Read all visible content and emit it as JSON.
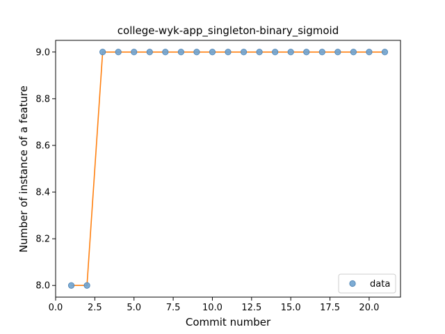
{
  "chart_data": {
    "type": "line",
    "title": "college-wyk-app_singleton-binary_sigmoid",
    "xlabel": "Commit number",
    "ylabel": "Number of instance of a feature",
    "xlim": [
      0.0,
      22.0
    ],
    "ylim": [
      7.95,
      9.05
    ],
    "xticks": [
      0.0,
      2.5,
      5.0,
      7.5,
      10.0,
      12.5,
      15.0,
      17.5,
      20.0
    ],
    "xtick_labels": [
      "0.0",
      "2.5",
      "5.0",
      "7.5",
      "10.0",
      "12.5",
      "15.0",
      "17.5",
      "20.0"
    ],
    "yticks": [
      8.0,
      8.2,
      8.4,
      8.6,
      8.8,
      9.0
    ],
    "ytick_labels": [
      "8.0",
      "8.2",
      "8.4",
      "8.6",
      "8.8",
      "9.0"
    ],
    "grid": false,
    "legend_position": "lower-right",
    "series": [
      {
        "name": "data",
        "style": "markers",
        "color": "#6fa3cf",
        "edge_color": "#4a7fb0",
        "x": [
          1,
          2,
          3,
          4,
          5,
          6,
          7,
          8,
          9,
          10,
          11,
          12,
          13,
          14,
          15,
          16,
          17,
          18,
          19,
          20,
          21
        ],
        "values": [
          8,
          8,
          9,
          9,
          9,
          9,
          9,
          9,
          9,
          9,
          9,
          9,
          9,
          9,
          9,
          9,
          9,
          9,
          9,
          9,
          9
        ]
      },
      {
        "style": "line",
        "color": "#ff7f0e",
        "x": [
          1,
          2,
          3,
          4,
          5,
          6,
          7,
          8,
          9,
          10,
          11,
          12,
          13,
          14,
          15,
          16,
          17,
          18,
          19,
          20,
          21
        ],
        "values": [
          8,
          8,
          9,
          9,
          9,
          9,
          9,
          9,
          9,
          9,
          9,
          9,
          9,
          9,
          9,
          9,
          9,
          9,
          9,
          9,
          9
        ]
      }
    ]
  }
}
